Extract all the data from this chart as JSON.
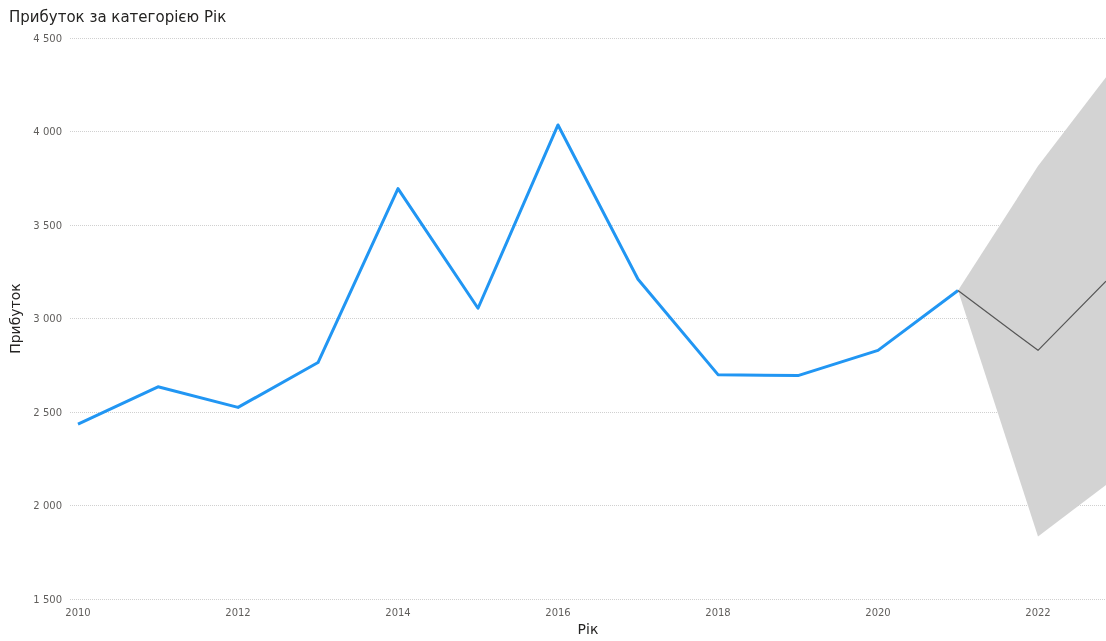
{
  "chart_data": {
    "type": "line",
    "title": "Прибуток за категорією Рік",
    "xlabel": "Рік",
    "ylabel": "Прибуток",
    "xlim": [
      2009.9,
      2022.85
    ],
    "xticks": [
      2010,
      2012,
      2014,
      2016,
      2018,
      2020,
      2022
    ],
    "ylim": [
      1500,
      4500
    ],
    "yticks": [
      {
        "value": 1500,
        "label": "1 500"
      },
      {
        "value": 2000,
        "label": "2 000"
      },
      {
        "value": 2500,
        "label": "2 500"
      },
      {
        "value": 3000,
        "label": "3 000"
      },
      {
        "value": 3500,
        "label": "3 500"
      },
      {
        "value": 4000,
        "label": "4 000"
      },
      {
        "value": 4500,
        "label": "4 500"
      }
    ],
    "grid": "y",
    "marker": "none",
    "line_style": "solid",
    "series": [
      {
        "color": "#2196f3",
        "x": [
          2010,
          2011,
          2012,
          2013,
          2014,
          2015,
          2016,
          2017,
          2018,
          2019,
          2020,
          2021
        ],
        "values": [
          2435,
          2635,
          2525,
          2765,
          3695,
          3055,
          4035,
          3210,
          2700,
          2695,
          2830,
          3150
        ]
      },
      {
        "color": "#555555",
        "x": [
          2021,
          2022,
          2022.85
        ],
        "values": [
          3150,
          2830,
          3200
        ],
        "lower": [
          3150,
          1835,
          2110
        ],
        "upper": [
          3150,
          3815,
          4290
        ]
      }
    ]
  }
}
